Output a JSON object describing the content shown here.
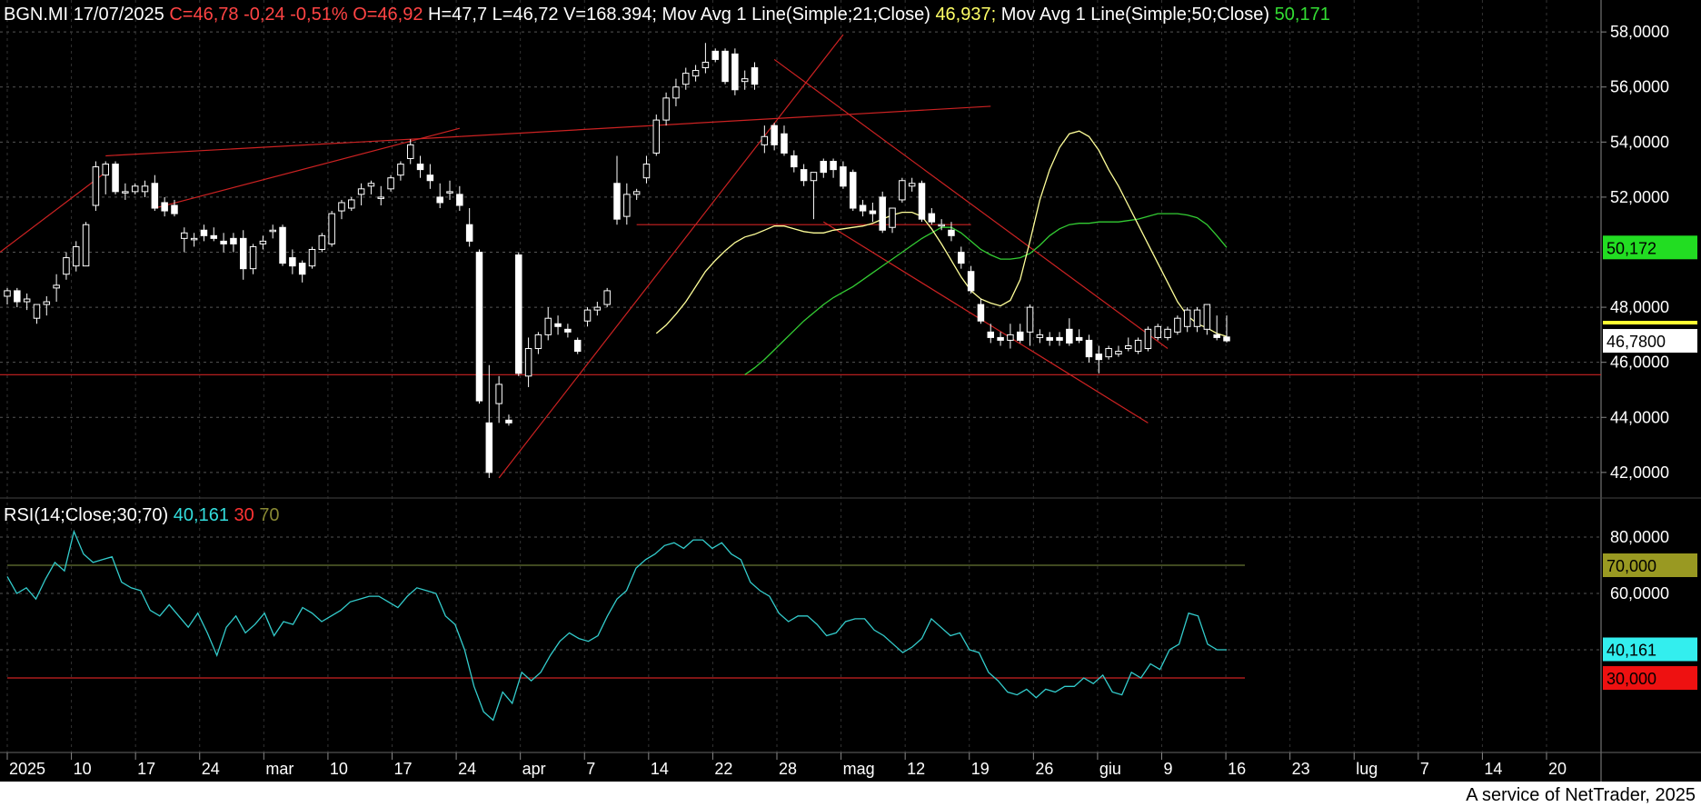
{
  "header": {
    "symbol": "BGN.MI",
    "date": "17/07/2025",
    "close": "C=46,78",
    "change": "-0,24",
    "change_pct": "-0,51%",
    "open": "O=46,92",
    "high": "H=47,7",
    "low": "L=46,72",
    "volume": "V=168.394;",
    "ma21_label": "Mov Avg 1 Line(Simple;21;Close)",
    "ma21_value": "46,937;",
    "ma50_label": "Mov Avg 1 Line(Simple;50;Close)",
    "ma50_value": "50,171"
  },
  "rsi_header": {
    "label": "RSI(14;Close;30;70)",
    "value": "40,161",
    "low": "30",
    "high": "70"
  },
  "footer": "A service of NetTrader, 2025",
  "colors": {
    "background": "#000000",
    "up_candle": "#ffffff",
    "down_candle": "#ffffff",
    "ma21": "#ffff99",
    "ma50": "#33cc33",
    "rsi": "#33cccc",
    "trendline": "#cc2222",
    "grid": "#555555"
  },
  "price_axis": {
    "ticks": [
      "58,0000",
      "56,0000",
      "54,0000",
      "52,0000",
      "48,0000",
      "46,0000",
      "44,0000",
      "42,0000"
    ],
    "badges": {
      "ma50": "50,172",
      "last": "46,7800"
    }
  },
  "rsi_axis": {
    "ticks": [
      "80,0000",
      "60,0000"
    ],
    "badges": {
      "high": "70,000",
      "rsi": "40,161",
      "low": "30,000"
    }
  },
  "x_axis": {
    "labels": [
      "2025",
      "10",
      "17",
      "24",
      "mar",
      "10",
      "17",
      "24",
      "apr",
      "7",
      "14",
      "22",
      "28",
      "mag",
      "12",
      "19",
      "26",
      "giu",
      "9",
      "16",
      "23",
      "lug",
      "7",
      "14",
      "20"
    ]
  },
  "chart_data": {
    "type": "candlestick",
    "price_range": [
      41.5,
      58.5
    ],
    "rsi_range": [
      10,
      90
    ],
    "candles": [
      {
        "o": 48.4,
        "h": 48.7,
        "l": 48.1,
        "c": 48.6
      },
      {
        "o": 48.6,
        "h": 48.7,
        "l": 48.0,
        "c": 48.2
      },
      {
        "o": 48.2,
        "h": 48.5,
        "l": 47.9,
        "c": 48.3
      },
      {
        "o": 47.6,
        "h": 48.1,
        "l": 47.4,
        "c": 48.1
      },
      {
        "o": 48.1,
        "h": 48.4,
        "l": 47.7,
        "c": 48.2
      },
      {
        "o": 48.7,
        "h": 49.2,
        "l": 48.2,
        "c": 48.8
      },
      {
        "o": 49.2,
        "h": 50.0,
        "l": 49.0,
        "c": 49.8
      },
      {
        "o": 49.5,
        "h": 50.4,
        "l": 49.3,
        "c": 50.2
      },
      {
        "o": 49.5,
        "h": 51.1,
        "l": 49.5,
        "c": 51.0
      },
      {
        "o": 51.7,
        "h": 53.3,
        "l": 51.5,
        "c": 53.1
      },
      {
        "o": 52.8,
        "h": 53.3,
        "l": 52.1,
        "c": 53.2
      },
      {
        "o": 53.2,
        "h": 53.3,
        "l": 52.1,
        "c": 52.2
      },
      {
        "o": 52.2,
        "h": 52.5,
        "l": 51.9,
        "c": 52.2
      },
      {
        "o": 52.2,
        "h": 52.5,
        "l": 52.1,
        "c": 52.4
      },
      {
        "o": 52.2,
        "h": 52.6,
        "l": 52.0,
        "c": 52.4
      },
      {
        "o": 52.5,
        "h": 52.8,
        "l": 51.5,
        "c": 51.6
      },
      {
        "o": 51.8,
        "h": 52.0,
        "l": 51.3,
        "c": 51.5
      },
      {
        "o": 51.7,
        "h": 51.9,
        "l": 51.3,
        "c": 51.4
      },
      {
        "o": 50.5,
        "h": 50.9,
        "l": 50.0,
        "c": 50.7
      },
      {
        "o": 50.5,
        "h": 50.7,
        "l": 50.2,
        "c": 50.5
      },
      {
        "o": 50.8,
        "h": 51.0,
        "l": 50.4,
        "c": 50.6
      },
      {
        "o": 50.6,
        "h": 50.9,
        "l": 50.4,
        "c": 50.5
      },
      {
        "o": 50.4,
        "h": 50.7,
        "l": 50.0,
        "c": 50.3
      },
      {
        "o": 50.5,
        "h": 50.7,
        "l": 50.0,
        "c": 50.3
      },
      {
        "o": 50.5,
        "h": 50.8,
        "l": 49.0,
        "c": 49.4
      },
      {
        "o": 49.4,
        "h": 50.3,
        "l": 49.2,
        "c": 50.2
      },
      {
        "o": 50.3,
        "h": 50.6,
        "l": 50.1,
        "c": 50.4
      },
      {
        "o": 50.8,
        "h": 51.0,
        "l": 50.5,
        "c": 50.8
      },
      {
        "o": 50.9,
        "h": 51.0,
        "l": 49.5,
        "c": 49.6
      },
      {
        "o": 49.8,
        "h": 50.1,
        "l": 49.2,
        "c": 49.5
      },
      {
        "o": 49.6,
        "h": 49.7,
        "l": 48.9,
        "c": 49.2
      },
      {
        "o": 49.5,
        "h": 50.2,
        "l": 49.4,
        "c": 50.1
      },
      {
        "o": 50.1,
        "h": 50.7,
        "l": 50.0,
        "c": 50.6
      },
      {
        "o": 50.3,
        "h": 51.5,
        "l": 50.2,
        "c": 51.4
      },
      {
        "o": 51.5,
        "h": 51.9,
        "l": 51.2,
        "c": 51.8
      },
      {
        "o": 51.6,
        "h": 52.0,
        "l": 51.5,
        "c": 51.9
      },
      {
        "o": 52.1,
        "h": 52.5,
        "l": 51.7,
        "c": 52.3
      },
      {
        "o": 52.4,
        "h": 52.6,
        "l": 52.1,
        "c": 52.5
      },
      {
        "o": 52.0,
        "h": 52.4,
        "l": 51.7,
        "c": 52.0
      },
      {
        "o": 52.3,
        "h": 52.8,
        "l": 52.2,
        "c": 52.7
      },
      {
        "o": 52.8,
        "h": 53.3,
        "l": 52.6,
        "c": 53.2
      },
      {
        "o": 53.4,
        "h": 54.1,
        "l": 53.2,
        "c": 53.9
      },
      {
        "o": 53.2,
        "h": 53.5,
        "l": 52.7,
        "c": 53.0
      },
      {
        "o": 52.8,
        "h": 53.2,
        "l": 52.3,
        "c": 52.6
      },
      {
        "o": 52.0,
        "h": 52.5,
        "l": 51.6,
        "c": 51.8
      },
      {
        "o": 52.2,
        "h": 52.6,
        "l": 51.9,
        "c": 52.2
      },
      {
        "o": 52.1,
        "h": 52.4,
        "l": 51.5,
        "c": 51.7
      },
      {
        "o": 51.0,
        "h": 51.6,
        "l": 50.2,
        "c": 50.4
      },
      {
        "o": 50.0,
        "h": 50.1,
        "l": 44.5,
        "c": 44.6
      },
      {
        "o": 43.8,
        "h": 45.9,
        "l": 41.8,
        "c": 42.0
      },
      {
        "o": 44.5,
        "h": 45.5,
        "l": 43.8,
        "c": 45.2
      },
      {
        "o": 43.9,
        "h": 44.1,
        "l": 43.7,
        "c": 43.8
      },
      {
        "o": 49.9,
        "h": 50.0,
        "l": 45.5,
        "c": 45.6
      },
      {
        "o": 45.5,
        "h": 46.9,
        "l": 45.1,
        "c": 46.5
      },
      {
        "o": 46.5,
        "h": 47.1,
        "l": 46.3,
        "c": 47.0
      },
      {
        "o": 47.0,
        "h": 48.0,
        "l": 46.8,
        "c": 47.6
      },
      {
        "o": 47.4,
        "h": 47.7,
        "l": 47.0,
        "c": 47.3
      },
      {
        "o": 47.2,
        "h": 47.4,
        "l": 46.9,
        "c": 47.1
      },
      {
        "o": 46.8,
        "h": 46.9,
        "l": 46.3,
        "c": 46.4
      },
      {
        "o": 47.5,
        "h": 48.0,
        "l": 47.3,
        "c": 47.9
      },
      {
        "o": 47.9,
        "h": 48.2,
        "l": 47.7,
        "c": 48.0
      },
      {
        "o": 48.1,
        "h": 48.7,
        "l": 48.0,
        "c": 48.6
      },
      {
        "o": 52.5,
        "h": 53.5,
        "l": 51.0,
        "c": 51.2
      },
      {
        "o": 51.3,
        "h": 52.5,
        "l": 51.0,
        "c": 52.1
      },
      {
        "o": 52.1,
        "h": 52.3,
        "l": 51.9,
        "c": 52.2
      },
      {
        "o": 52.7,
        "h": 53.5,
        "l": 52.5,
        "c": 53.2
      },
      {
        "o": 53.6,
        "h": 55.0,
        "l": 53.5,
        "c": 54.8
      },
      {
        "o": 54.8,
        "h": 55.8,
        "l": 54.6,
        "c": 55.6
      },
      {
        "o": 55.6,
        "h": 56.3,
        "l": 55.3,
        "c": 56.0
      },
      {
        "o": 56.1,
        "h": 56.7,
        "l": 55.9,
        "c": 56.5
      },
      {
        "o": 56.4,
        "h": 56.8,
        "l": 56.2,
        "c": 56.6
      },
      {
        "o": 56.7,
        "h": 57.6,
        "l": 56.5,
        "c": 56.9
      },
      {
        "o": 57.3,
        "h": 57.4,
        "l": 56.9,
        "c": 57.0
      },
      {
        "o": 57.3,
        "h": 57.4,
        "l": 56.1,
        "c": 56.2
      },
      {
        "o": 57.2,
        "h": 57.4,
        "l": 55.7,
        "c": 55.9
      },
      {
        "o": 56.2,
        "h": 56.6,
        "l": 55.9,
        "c": 56.3
      },
      {
        "o": 56.7,
        "h": 56.9,
        "l": 55.9,
        "c": 56.1
      },
      {
        "o": 53.9,
        "h": 54.6,
        "l": 53.6,
        "c": 54.2
      },
      {
        "o": 54.6,
        "h": 54.7,
        "l": 53.7,
        "c": 53.9
      },
      {
        "o": 54.3,
        "h": 54.6,
        "l": 53.5,
        "c": 53.6
      },
      {
        "o": 53.5,
        "h": 53.7,
        "l": 52.9,
        "c": 53.1
      },
      {
        "o": 53.0,
        "h": 53.2,
        "l": 52.4,
        "c": 52.6
      },
      {
        "o": 52.6,
        "h": 52.9,
        "l": 51.2,
        "c": 52.9
      },
      {
        "o": 53.3,
        "h": 53.4,
        "l": 52.7,
        "c": 52.9
      },
      {
        "o": 53.3,
        "h": 53.4,
        "l": 52.7,
        "c": 53.0
      },
      {
        "o": 53.1,
        "h": 53.3,
        "l": 52.3,
        "c": 52.4
      },
      {
        "o": 52.9,
        "h": 53.0,
        "l": 51.5,
        "c": 51.6
      },
      {
        "o": 51.7,
        "h": 51.9,
        "l": 51.3,
        "c": 51.5
      },
      {
        "o": 51.5,
        "h": 51.8,
        "l": 51.1,
        "c": 51.4
      },
      {
        "o": 52.0,
        "h": 52.2,
        "l": 50.7,
        "c": 50.8
      },
      {
        "o": 50.9,
        "h": 51.6,
        "l": 50.7,
        "c": 51.6
      },
      {
        "o": 51.9,
        "h": 52.7,
        "l": 51.8,
        "c": 52.6
      },
      {
        "o": 52.4,
        "h": 52.7,
        "l": 52.2,
        "c": 52.5
      },
      {
        "o": 52.5,
        "h": 52.6,
        "l": 51.1,
        "c": 51.2
      },
      {
        "o": 51.4,
        "h": 51.6,
        "l": 51.0,
        "c": 51.1
      },
      {
        "o": 51.0,
        "h": 51.2,
        "l": 50.8,
        "c": 51.0
      },
      {
        "o": 50.8,
        "h": 51.1,
        "l": 50.4,
        "c": 50.6
      },
      {
        "o": 50.0,
        "h": 50.2,
        "l": 49.4,
        "c": 49.6
      },
      {
        "o": 49.3,
        "h": 49.5,
        "l": 48.5,
        "c": 48.6
      },
      {
        "o": 48.1,
        "h": 48.3,
        "l": 47.4,
        "c": 47.5
      },
      {
        "o": 47.1,
        "h": 47.4,
        "l": 46.7,
        "c": 46.9
      },
      {
        "o": 46.9,
        "h": 47.1,
        "l": 46.6,
        "c": 46.8
      },
      {
        "o": 46.8,
        "h": 47.4,
        "l": 46.5,
        "c": 47.0
      },
      {
        "o": 47.1,
        "h": 47.4,
        "l": 46.7,
        "c": 46.8
      },
      {
        "o": 47.1,
        "h": 48.1,
        "l": 46.6,
        "c": 48.0
      },
      {
        "o": 46.9,
        "h": 47.2,
        "l": 46.7,
        "c": 47.0
      },
      {
        "o": 46.9,
        "h": 47.1,
        "l": 46.6,
        "c": 46.8
      },
      {
        "o": 46.9,
        "h": 47.1,
        "l": 46.6,
        "c": 46.8
      },
      {
        "o": 47.2,
        "h": 47.6,
        "l": 46.6,
        "c": 46.7
      },
      {
        "o": 46.9,
        "h": 47.2,
        "l": 46.7,
        "c": 46.8
      },
      {
        "o": 46.8,
        "h": 47.0,
        "l": 46.0,
        "c": 46.2
      },
      {
        "o": 46.3,
        "h": 46.6,
        "l": 45.6,
        "c": 46.1
      },
      {
        "o": 46.2,
        "h": 46.6,
        "l": 46.1,
        "c": 46.5
      },
      {
        "o": 46.3,
        "h": 46.6,
        "l": 46.2,
        "c": 46.4
      },
      {
        "o": 46.5,
        "h": 46.9,
        "l": 46.4,
        "c": 46.6
      },
      {
        "o": 46.4,
        "h": 46.9,
        "l": 46.3,
        "c": 46.8
      },
      {
        "o": 46.5,
        "h": 47.3,
        "l": 46.4,
        "c": 47.2
      },
      {
        "o": 46.9,
        "h": 47.4,
        "l": 46.8,
        "c": 47.3
      },
      {
        "o": 46.9,
        "h": 47.3,
        "l": 46.8,
        "c": 47.2
      },
      {
        "o": 47.1,
        "h": 47.7,
        "l": 47.0,
        "c": 47.6
      },
      {
        "o": 47.3,
        "h": 48.0,
        "l": 47.1,
        "c": 47.9
      },
      {
        "o": 47.3,
        "h": 48.0,
        "l": 47.1,
        "c": 47.9
      },
      {
        "o": 47.2,
        "h": 48.1,
        "l": 47.0,
        "c": 48.1
      },
      {
        "o": 47.0,
        "h": 47.7,
        "l": 46.8,
        "c": 46.9
      },
      {
        "o": 46.92,
        "h": 47.7,
        "l": 46.72,
        "c": 46.78
      }
    ],
    "ma21": [
      47.05,
      47.35,
      47.75,
      48.2,
      48.75,
      49.3,
      49.7,
      50.05,
      50.35,
      50.55,
      50.65,
      50.8,
      50.95,
      50.95,
      50.85,
      50.75,
      50.7,
      50.7,
      50.8,
      50.85,
      50.9,
      50.95,
      51.05,
      51.2,
      51.35,
      51.45,
      51.45,
      51.3,
      50.85,
      50.3,
      49.7,
      49.1,
      48.6,
      48.3,
      48.15,
      48.05,
      48.25,
      49.0,
      50.4,
      51.9,
      53.0,
      53.8,
      54.3,
      54.4,
      54.2,
      53.7,
      53.0,
      52.4,
      51.7,
      51.0,
      50.3,
      49.6,
      48.9,
      48.2,
      47.7,
      47.4,
      47.25,
      47.05,
      46.94
    ],
    "ma50": [
      45.55,
      45.8,
      46.1,
      46.45,
      46.8,
      47.15,
      47.5,
      47.8,
      48.1,
      48.35,
      48.55,
      48.75,
      49.0,
      49.25,
      49.5,
      49.75,
      50.0,
      50.25,
      50.5,
      50.7,
      50.9,
      50.9,
      50.7,
      50.4,
      50.1,
      49.9,
      49.75,
      49.75,
      49.8,
      49.95,
      50.25,
      50.6,
      50.85,
      51.0,
      51.05,
      51.05,
      51.1,
      51.1,
      51.1,
      51.15,
      51.2,
      51.3,
      51.4,
      51.4,
      51.4,
      51.35,
      51.25,
      51.0,
      50.6,
      50.17
    ],
    "rsi": [
      66,
      60,
      62,
      58,
      65,
      71,
      68,
      82,
      74,
      71,
      72,
      73,
      64,
      62,
      61,
      54,
      52,
      56,
      52,
      48,
      53,
      46,
      38,
      48,
      52,
      46,
      49,
      53,
      45,
      50,
      49,
      55,
      53,
      50,
      52,
      54,
      57,
      58,
      59,
      59,
      57,
      55,
      59,
      62,
      61,
      60,
      52,
      49,
      40,
      27,
      18,
      15,
      25,
      21,
      32,
      29,
      32,
      38,
      43,
      46,
      44,
      43,
      45,
      52,
      58,
      61,
      69,
      72,
      74,
      77,
      78,
      76,
      79,
      79,
      76,
      78,
      74,
      72,
      64,
      61,
      59,
      53,
      50,
      52,
      52,
      49,
      45,
      46,
      50,
      51,
      51,
      47,
      45,
      42,
      39,
      41,
      44,
      51,
      48,
      45,
      46,
      40,
      39,
      32,
      29,
      25,
      24,
      26,
      23,
      26,
      25,
      27,
      27,
      30,
      28,
      31,
      25,
      24,
      32,
      30,
      35,
      33,
      40,
      42,
      53,
      52,
      42,
      40,
      40
    ]
  }
}
